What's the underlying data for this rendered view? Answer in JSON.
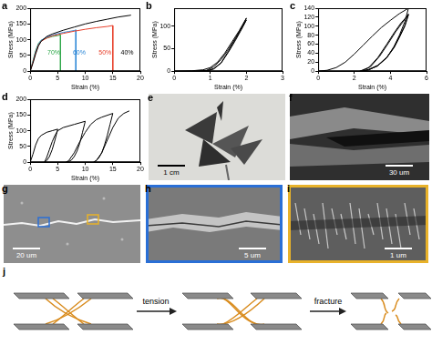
{
  "chart_data": [
    {
      "panel": "a",
      "type": "line",
      "x_label": "Strain (%)",
      "y_label": "Stress (MPa)",
      "xlim": [
        0,
        20
      ],
      "xticks": [
        0,
        5,
        10,
        15,
        20
      ],
      "ylim": [
        0,
        200
      ],
      "yticks": [
        0,
        50,
        100,
        150,
        200
      ],
      "grid": false,
      "series": [
        {
          "color": "#000000",
          "x": [
            0,
            0.5,
            1,
            1.5,
            2,
            3,
            4,
            6,
            8,
            10,
            12,
            14,
            16,
            18,
            18.3
          ],
          "values": [
            0,
            25,
            55,
            80,
            95,
            110,
            118,
            130,
            140,
            150,
            158,
            165,
            172,
            177,
            178
          ]
        },
        {
          "color": "#e8412c",
          "x": [
            0,
            0.5,
            1,
            1.5,
            2,
            3,
            4,
            6,
            8,
            10,
            12,
            14,
            15,
            15
          ],
          "values": [
            0,
            28,
            58,
            82,
            95,
            105,
            112,
            120,
            127,
            133,
            138,
            142,
            145,
            0
          ]
        },
        {
          "color": "#2a86d6",
          "x": [
            0,
            0.5,
            1,
            1.5,
            2,
            3,
            4,
            5,
            6,
            7,
            8,
            8.3,
            8.3
          ],
          "values": [
            0,
            30,
            62,
            85,
            98,
            108,
            114,
            119,
            123,
            126,
            129,
            131,
            0
          ]
        },
        {
          "color": "#2fa84a",
          "x": [
            0,
            0.5,
            1,
            1.5,
            2,
            3,
            4,
            5,
            5.5,
            5.5
          ],
          "values": [
            0,
            32,
            65,
            88,
            98,
            105,
            110,
            113,
            115,
            0
          ]
        }
      ],
      "annotations": [
        {
          "text": "70%",
          "x": 4.3,
          "y": 58,
          "color": "#2fa84a"
        },
        {
          "text": "60%",
          "x": 8.9,
          "y": 58,
          "color": "#2a86d6"
        },
        {
          "text": "50%",
          "x": 13.6,
          "y": 58,
          "color": "#e8412c"
        },
        {
          "text": "40%",
          "x": 17.6,
          "y": 58,
          "color": "#000000"
        }
      ]
    },
    {
      "panel": "b",
      "type": "line",
      "x_label": "Strain (%)",
      "y_label": "Stress (MPa)",
      "xlim": [
        0,
        3
      ],
      "xticks": [
        0,
        1,
        2,
        3
      ],
      "ylim": [
        0,
        140
      ],
      "yticks": [
        0,
        50,
        100
      ],
      "grid": false,
      "series": [
        {
          "color": "#000000",
          "x": [
            0,
            0.5,
            0.8,
            1.0,
            1.2,
            1.4,
            1.6,
            1.8,
            2.0,
            1.9,
            1.7,
            1.5,
            1.3,
            1.1,
            0.9,
            0.6,
            0.9,
            1.1,
            1.3,
            1.5,
            1.7,
            1.9,
            2.0,
            1.9,
            1.7,
            1.5,
            1.3,
            1.1,
            0.95,
            0.7
          ],
          "values": [
            0,
            1,
            3,
            8,
            20,
            40,
            65,
            90,
            118,
            102,
            72,
            44,
            19,
            6,
            1,
            0,
            2,
            10,
            26,
            48,
            74,
            100,
            114,
            98,
            69,
            42,
            18,
            5,
            1,
            0
          ]
        }
      ]
    },
    {
      "panel": "c",
      "type": "line",
      "x_label": "Strain (%)",
      "y_label": "Stress (MPa)",
      "xlim": [
        0,
        6
      ],
      "xticks": [
        0,
        2,
        4,
        6
      ],
      "ylim": [
        0,
        140
      ],
      "yticks": [
        0,
        20,
        40,
        60,
        80,
        100,
        120,
        140
      ],
      "grid": false,
      "series": [
        {
          "color": "#000000",
          "x": [
            0,
            0.5,
            1,
            1.5,
            2,
            2.5,
            3,
            3.5,
            4,
            4.5,
            5,
            4.8,
            4.5,
            4.2,
            3.8,
            3.3,
            2.8,
            2.3,
            2.8,
            3.3,
            3.8,
            4.2,
            4.6,
            5,
            4.8,
            4.5,
            4.2,
            3.8,
            3.3,
            2.8,
            2.4,
            2.9,
            3.4,
            3.9,
            4.3,
            4.7,
            5,
            4.8,
            4.5,
            4.2,
            3.8,
            3.3,
            2.8,
            2.5
          ],
          "values": [
            0,
            2,
            8,
            20,
            38,
            58,
            78,
            97,
            113,
            128,
            140,
            110,
            80,
            55,
            30,
            12,
            3,
            0,
            8,
            30,
            60,
            85,
            108,
            125,
            100,
            75,
            52,
            30,
            12,
            3,
            0,
            10,
            33,
            63,
            88,
            110,
            127,
            102,
            77,
            53,
            31,
            13,
            4,
            0
          ]
        }
      ]
    },
    {
      "panel": "d",
      "type": "line",
      "x_label": "Strain (%)",
      "y_label": "Stress (MPa)",
      "xlim": [
        0,
        20
      ],
      "xticks": [
        0,
        5,
        10,
        15,
        20
      ],
      "ylim": [
        0,
        200
      ],
      "yticks": [
        0,
        50,
        100,
        150,
        200
      ],
      "grid": false,
      "series": [
        {
          "color": "#000000",
          "x": [
            0,
            0.5,
            1,
            1.5,
            2,
            3,
            4,
            5,
            4.5,
            4,
            3.5,
            3,
            2.6,
            3,
            3.5,
            4,
            4.5,
            5,
            6,
            8,
            10,
            9.5,
            9,
            8.5,
            8,
            7.5,
            7,
            6.5,
            7,
            8,
            9,
            10,
            11,
            12,
            13,
            15,
            14.5,
            14,
            13.5,
            13,
            12.5,
            12,
            11.5,
            12,
            13,
            14,
            15,
            16,
            17,
            18
          ],
          "values": [
            0,
            25,
            55,
            75,
            85,
            95,
            100,
            105,
            70,
            40,
            18,
            5,
            0,
            15,
            40,
            65,
            85,
            100,
            110,
            120,
            130,
            95,
            60,
            35,
            18,
            7,
            2,
            0,
            5,
            30,
            65,
            95,
            120,
            135,
            143,
            155,
            120,
            85,
            55,
            30,
            15,
            5,
            0,
            5,
            30,
            70,
            110,
            140,
            155,
            163
          ]
        }
      ]
    }
  ],
  "images": [
    {
      "panel": "e",
      "scale_bar": "1 cm"
    },
    {
      "panel": "f",
      "scale_bar": "30 um"
    },
    {
      "panel": "g",
      "scale_bar": "20 um"
    },
    {
      "panel": "h",
      "scale_bar": "5 um"
    },
    {
      "panel": "i",
      "scale_bar": "1 um"
    }
  ],
  "diagram": {
    "panel": "j",
    "arrows": [
      "tension",
      "fracture"
    ]
  }
}
